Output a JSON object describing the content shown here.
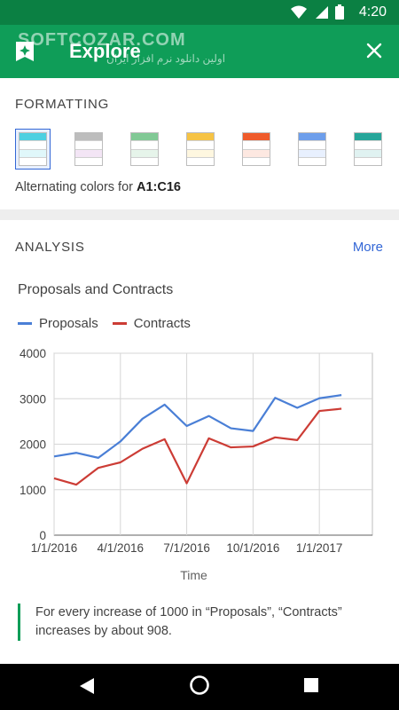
{
  "status_bar": {
    "time": "4:20"
  },
  "app_bar": {
    "title": "Explore",
    "watermark": "SOFTCOZAR.COM",
    "watermark_sub": "اولین دانلود نرم افزار ایران"
  },
  "formatting": {
    "section_title": "FORMATTING",
    "caption_prefix": "Alternating colors for ",
    "caption_range": "A1:C16",
    "swatches": [
      {
        "header": "#4dd0e1",
        "row": "#e0f7fa",
        "selected": true
      },
      {
        "header": "#bdbdbd",
        "row": "#f3e5f5",
        "selected": false
      },
      {
        "header": "#81c995",
        "row": "#e6f4ea",
        "selected": false
      },
      {
        "header": "#f6c344",
        "row": "#fef7e0",
        "selected": false
      },
      {
        "header": "#ef5b2b",
        "row": "#fde8e1",
        "selected": false
      },
      {
        "header": "#6d9eeb",
        "row": "#e8f0fe",
        "selected": false
      },
      {
        "header": "#26a69a",
        "row": "#e0f2f1",
        "selected": false
      }
    ]
  },
  "analysis": {
    "section_title": "ANALYSIS",
    "more_label": "More",
    "insight": "For every increase of 1000 in “Proposals”, “Contracts” increases by about 908."
  },
  "chart_data": {
    "type": "line",
    "title": "Proposals and Contracts",
    "xlabel": "Time",
    "ylabel": "",
    "ylim": [
      0,
      4000
    ],
    "yticks": [
      "0",
      "1000",
      "2000",
      "3000",
      "4000"
    ],
    "xticks": [
      "1/1/2016",
      "4/1/2016",
      "7/1/2016",
      "10/1/2016",
      "1/1/2017"
    ],
    "x_range_months": [
      0,
      14.4
    ],
    "grid": true,
    "legend": "top-left",
    "x": [
      "2016-01",
      "2016-02",
      "2016-03",
      "2016-04",
      "2016-05",
      "2016-06",
      "2016-07",
      "2016-08",
      "2016-09",
      "2016-10",
      "2016-11",
      "2016-12",
      "2017-01",
      "2017-02"
    ],
    "series": [
      {
        "name": "Proposals",
        "color": "#4a7fd6",
        "values": [
          1730,
          1810,
          1700,
          2060,
          2560,
          2870,
          2400,
          2620,
          2350,
          2290,
          3020,
          2800,
          3010,
          3080
        ]
      },
      {
        "name": "Contracts",
        "color": "#cc3c35",
        "values": [
          1250,
          1110,
          1480,
          1600,
          1900,
          2110,
          1140,
          2130,
          1930,
          1950,
          2150,
          2090,
          2730,
          2780
        ]
      }
    ]
  }
}
